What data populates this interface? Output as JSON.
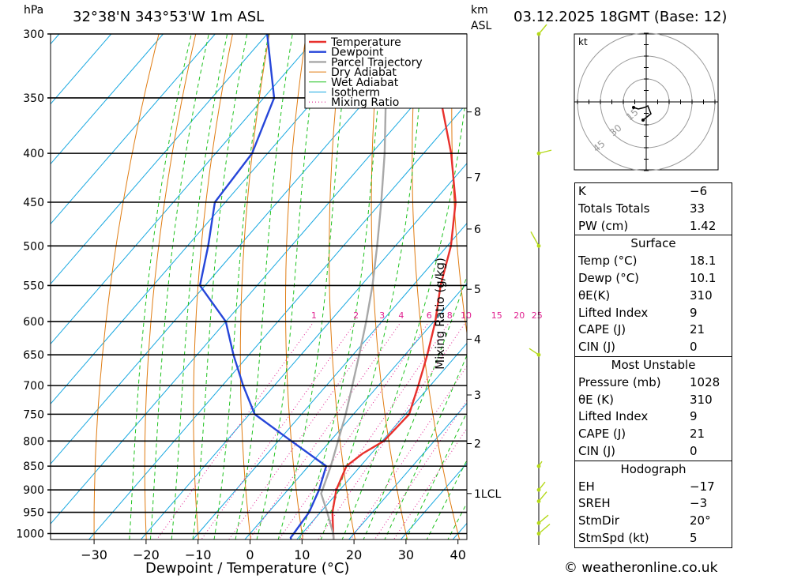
{
  "header": {
    "pressure_unit": "hPa",
    "location": "32°38'N 343°53'W 1m ASL",
    "height_unit_km": "km",
    "height_unit_asl": "ASL",
    "datetime": "03.12.2025 18GMT (Base: 12)"
  },
  "chart_data": {
    "type": "line",
    "xlabel": "Dewpoint / Temperature (°C)",
    "secondary_label": "Mixing Ratio (g/kg)",
    "pressure_levels": [
      300,
      350,
      400,
      450,
      500,
      550,
      600,
      650,
      700,
      750,
      800,
      850,
      900,
      950,
      1000
    ],
    "temperature_ticks": [
      -30,
      -20,
      -10,
      0,
      10,
      20,
      30,
      40
    ],
    "temperature_ticks_labels": [
      "−30",
      "−20",
      "−10",
      "0",
      "10",
      "20",
      "30",
      "40"
    ],
    "pressure_range": [
      300,
      1050
    ],
    "height_km_labels": [
      {
        "label": "8",
        "p": 362
      },
      {
        "label": "7",
        "p": 424
      },
      {
        "label": "6",
        "p": 480
      },
      {
        "label": "5",
        "p": 555
      },
      {
        "label": "4",
        "p": 626
      },
      {
        "label": "3",
        "p": 716
      },
      {
        "label": "2",
        "p": 805
      },
      {
        "label": "1LCL",
        "p": 908
      }
    ],
    "mixing_ratio_labels": [
      "1",
      "2",
      "3",
      "4",
      "6",
      "8",
      "10",
      "15",
      "20",
      "25"
    ],
    "mixing_ratio_values": [
      1,
      2,
      3,
      4,
      6,
      8,
      10,
      15,
      20,
      25
    ],
    "legend": [
      "Temperature",
      "Dewpoint",
      "Parcel Trajectory",
      "Dry Adiabat",
      "Wet Adiabat",
      "Isotherm",
      "Mixing Ratio"
    ],
    "series": [
      {
        "name": "Temperature",
        "color": "#e8302c",
        "points": [
          [
            1028,
            18.1
          ],
          [
            1000,
            16.0
          ],
          [
            950,
            12.3
          ],
          [
            900,
            9.3
          ],
          [
            850,
            7.3
          ],
          [
            825,
            8.3
          ],
          [
            800,
            10.3
          ],
          [
            750,
            10.7
          ],
          [
            700,
            7.7
          ],
          [
            650,
            4.3
          ],
          [
            600,
            0.3
          ],
          [
            550,
            -4.7
          ],
          [
            500,
            -9.3
          ],
          [
            450,
            -15.7
          ],
          [
            400,
            -24.7
          ],
          [
            350,
            -36.0
          ],
          [
            300,
            -47.5
          ]
        ]
      },
      {
        "name": "Dewpoint",
        "color": "#2646d9",
        "points": [
          [
            1028,
            10.1
          ],
          [
            1010,
            8.5
          ],
          [
            1000,
            8.4
          ],
          [
            950,
            7.8
          ],
          [
            900,
            6.0
          ],
          [
            850,
            3.4
          ],
          [
            800,
            -7.5
          ],
          [
            750,
            -19.0
          ],
          [
            700,
            -26.0
          ],
          [
            650,
            -33.0
          ],
          [
            600,
            -40.0
          ],
          [
            550,
            -51.0
          ],
          [
            500,
            -56.0
          ],
          [
            450,
            -62.0
          ],
          [
            400,
            -63.0
          ],
          [
            350,
            -68.0
          ],
          [
            300,
            -80.0
          ]
        ]
      },
      {
        "name": "Parcel Trajectory",
        "color": "#a8a8a8",
        "points": [
          [
            1028,
            18.1
          ],
          [
            1000,
            16.0
          ],
          [
            950,
            11.3
          ],
          [
            908,
            7.0
          ],
          [
            850,
            4.3
          ],
          [
            800,
            1.5
          ],
          [
            750,
            -1.5
          ],
          [
            700,
            -5.0
          ],
          [
            650,
            -8.8
          ],
          [
            600,
            -13.0
          ],
          [
            550,
            -17.8
          ],
          [
            500,
            -23.5
          ],
          [
            450,
            -30.0
          ],
          [
            400,
            -37.5
          ],
          [
            350,
            -46.5
          ],
          [
            300,
            -57.0
          ]
        ]
      }
    ]
  },
  "hodograph": {
    "unit": "kt",
    "ring_labels": [
      "15",
      "30",
      "45"
    ]
  },
  "indices": {
    "general": [
      {
        "key": "K",
        "value": "−6"
      },
      {
        "key": "Totals Totals",
        "value": "33"
      },
      {
        "key": "PW (cm)",
        "value": "1.42"
      }
    ],
    "surface": {
      "title": "Surface",
      "rows": [
        {
          "key": "Temp (°C)",
          "value": "18.1"
        },
        {
          "key": "Dewp (°C)",
          "value": "10.1"
        },
        {
          "key": "θE(K)",
          "value": "310"
        },
        {
          "key": "Lifted Index",
          "value": "9"
        },
        {
          "key": "CAPE (J)",
          "value": "21"
        },
        {
          "key": "CIN (J)",
          "value": "0"
        }
      ]
    },
    "most_unstable": {
      "title": "Most Unstable",
      "rows": [
        {
          "key": "Pressure (mb)",
          "value": "1028"
        },
        {
          "key": "θE (K)",
          "value": "310"
        },
        {
          "key": "Lifted Index",
          "value": "9"
        },
        {
          "key": "CAPE (J)",
          "value": "21"
        },
        {
          "key": "CIN (J)",
          "value": "0"
        }
      ]
    },
    "hodograph_box": {
      "title": "Hodograph",
      "rows": [
        {
          "key": "EH",
          "value": "−17"
        },
        {
          "key": "SREH",
          "value": "−3"
        },
        {
          "key": "StmDir",
          "value": "20°"
        },
        {
          "key": "StmSpd (kt)",
          "value": "5"
        }
      ]
    }
  },
  "footer": {
    "copyright": "© weatheronline.co.uk"
  },
  "colors": {
    "temperature": "#e8302c",
    "dewpoint": "#2646d9",
    "parcel": "#a8a8a8",
    "dry_adiabat": "#e07c12",
    "wet_adiabat": "#1fc21f",
    "isotherm": "#18a8e0",
    "mixing_ratio": "#e0208f",
    "wind_barb": "#b5d91a"
  }
}
